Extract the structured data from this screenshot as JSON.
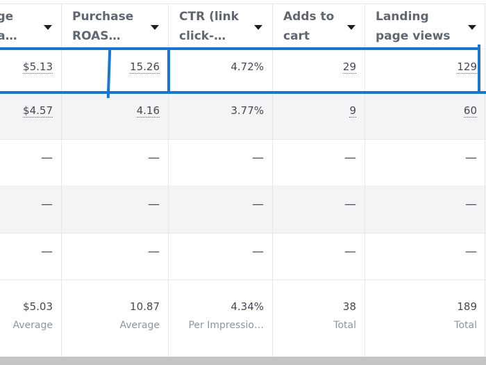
{
  "columns": [
    {
      "header": "age\nha…"
    },
    {
      "header": "Purchase\nROAS…"
    },
    {
      "header": "CTR (link\nclick-…"
    },
    {
      "header": "Adds to\ncart"
    },
    {
      "header": "Landing\npage views"
    }
  ],
  "rows": [
    [
      "$5.13",
      "15.26",
      "4.72%",
      "29",
      "129"
    ],
    [
      "$4.57",
      "4.16",
      "3.77%",
      "9",
      "60"
    ],
    [
      "—",
      "—",
      "—",
      "—",
      "—"
    ],
    [
      "—",
      "—",
      "—",
      "—",
      "—"
    ],
    [
      "—",
      "—",
      "—",
      "—",
      "—"
    ]
  ],
  "summary": [
    {
      "value": "$5.03",
      "label": "Average"
    },
    {
      "value": "10.87",
      "label": "Average"
    },
    {
      "value": "4.34%",
      "label": "Per Impressio…"
    },
    {
      "value": "38",
      "label": "Total"
    },
    {
      "value": "189",
      "label": "Total"
    }
  ],
  "highlight_color": "#1877d2"
}
